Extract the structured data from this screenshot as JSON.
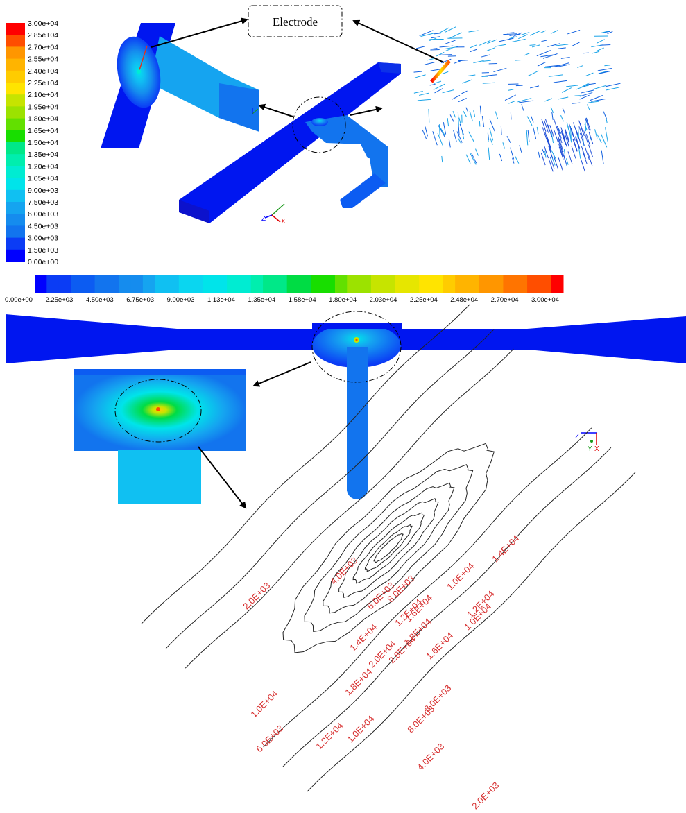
{
  "colors": {
    "scale": [
      "#0000ff",
      "#0b3cf5",
      "#0c5cf2",
      "#1274ee",
      "#158cee",
      "#15a4f0",
      "#10c0f2",
      "#0ad6f0",
      "#00e4ea",
      "#00ecd2",
      "#00eeae",
      "#00e888",
      "#00dc44",
      "#18de00",
      "#62e000",
      "#9ce200",
      "#c6e400",
      "#e6e600",
      "#ffe400",
      "#ffcc00",
      "#ffb400",
      "#ff9600",
      "#ff7400",
      "#ff4e00",
      "#ff0000"
    ],
    "domain_dark": "#0016f0",
    "contour_line": "#222222",
    "contour_label": "#d62b2b",
    "arrow": "#000000"
  },
  "legend_vertical": {
    "labels": [
      "3.00e+04",
      "2.85e+04",
      "2.70e+04",
      "2.55e+04",
      "2.40e+04",
      "2.25e+04",
      "2.10e+04",
      "1.95e+04",
      "1.80e+04",
      "1.65e+04",
      "1.50e+04",
      "1.35e+04",
      "1.20e+04",
      "1.05e+04",
      "9.00e+03",
      "7.50e+03",
      "6.00e+03",
      "4.50e+03",
      "3.00e+03",
      "1.50e+03",
      "0.00e+00"
    ]
  },
  "callout": {
    "label": "Electrode"
  },
  "legend_horizontal": {
    "labels": [
      "0.00e+00",
      "2.25e+03",
      "4.50e+03",
      "6.75e+03",
      "9.00e+03",
      "1.13e+04",
      "1.35e+04",
      "1.58e+04",
      "1.80e+04",
      "2.03e+04",
      "2.25e+04",
      "2.48e+04",
      "2.70e+04",
      "3.00e+04"
    ]
  },
  "axes": {
    "x": "X",
    "y": "Y",
    "z": "Z"
  },
  "contours": {
    "labels": [
      "2.0E+03",
      "4.0E+03",
      "6.0E+03",
      "8.0E+03",
      "1.0E+04",
      "1.4E+04",
      "1.2E+04",
      "1.6E+04",
      "1.8E+04",
      "2.8E+04",
      "2.0E+04",
      "1.6E+04",
      "1.2E+04",
      "1.0E+04",
      "1.4E+04",
      "1.8E+04",
      "8.0E+03",
      "1.0E+04",
      "1.2E+04",
      "1.0E+04",
      "8.0E+03",
      "6.0E+03",
      "4.0E+03",
      "2.0E+03"
    ]
  }
}
